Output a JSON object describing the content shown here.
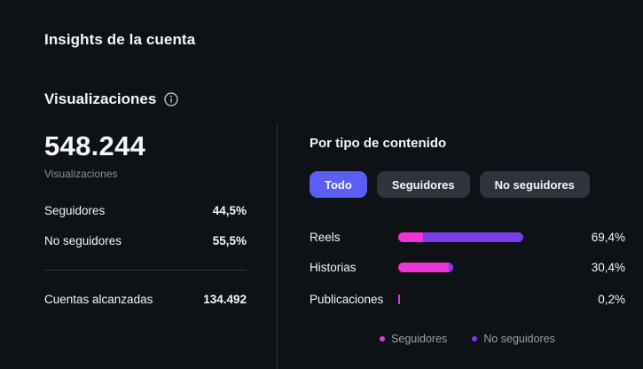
{
  "page": {
    "title": "Insights de la cuenta"
  },
  "views_section": {
    "heading": "Visualizaciones",
    "info_icon": "info-circle",
    "total": "548.244",
    "total_caption": "Visualizaciones",
    "rows": [
      {
        "label": "Seguidores",
        "value": "44,5%"
      },
      {
        "label": "No seguidores",
        "value": "55,5%"
      }
    ],
    "reach_row": {
      "label": "Cuentas alcanzadas",
      "value": "134.492"
    }
  },
  "content_type_section": {
    "heading": "Por tipo de contenido",
    "tabs": [
      {
        "label": "Todo",
        "active": true
      },
      {
        "label": "Seguidores",
        "active": false
      },
      {
        "label": "No seguidores",
        "active": false
      }
    ],
    "legend": [
      {
        "label": "Seguidores",
        "color": "#ee34d8"
      },
      {
        "label": "No seguidores",
        "color": "#7d3bf0"
      }
    ]
  },
  "chart_data": {
    "type": "bar",
    "subtype": "horizontal-stacked",
    "title": "Por tipo de contenido",
    "categories": [
      "Reels",
      "Historias",
      "Publicaciones"
    ],
    "series": [
      {
        "name": "Seguidores",
        "color": "#ee34d8",
        "values": [
          13.8,
          28.0,
          0.2
        ]
      },
      {
        "name": "No seguidores",
        "color": "#7d3bf0",
        "values": [
          55.6,
          2.4,
          0.0
        ]
      }
    ],
    "totals": [
      69.4,
      30.4,
      0.2
    ],
    "totals_display": [
      "69,4%",
      "30,4%",
      "0,2%"
    ],
    "xlim": [
      0,
      100
    ],
    "grid": false,
    "legend_position": "bottom-center"
  },
  "colors": {
    "background": "#0e1116",
    "text_primary": "#f4f5f7",
    "text_secondary": "#8d9198",
    "divider": "#33373e",
    "accent_active_tab": "#5a5ef5",
    "tab_inactive": "#2f333b",
    "bar_seguidores": "#ee34d8",
    "bar_no_seguidores": "#7d3bf0"
  }
}
